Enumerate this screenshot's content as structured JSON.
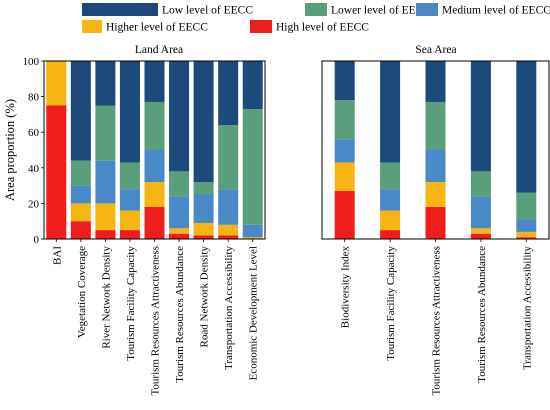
{
  "legend": [
    {
      "key": "low",
      "label": "Low level of EECC",
      "color": "#1b4a7b"
    },
    {
      "key": "lower",
      "label": "Lower level of EECC",
      "color": "#5b9e7c"
    },
    {
      "key": "medium",
      "label": "Medium level of EECC",
      "color": "#4a89c8"
    },
    {
      "key": "higher",
      "label": "Higher level of EECC",
      "color": "#f7b514"
    },
    {
      "key": "high",
      "label": "High level of EECC",
      "color": "#f01d1d"
    }
  ],
  "chart_data": [
    {
      "type": "bar",
      "stacked": true,
      "title": "Land Area",
      "ylabel": "Area proportion (%)",
      "ylim": [
        0,
        100
      ],
      "yticks": [
        0,
        20,
        40,
        60,
        80,
        100
      ],
      "grid": false,
      "categories": [
        "BAI",
        "Vegetation Coverage",
        "River Network Density",
        "Tourism Facility Capacity",
        "Tourism Resources Attractiveness",
        "Tourism Resources Abundance",
        "Road Network Density",
        "Transportation Accessibility",
        "Economic Development Level"
      ],
      "series": [
        {
          "name": "High level of EECC",
          "values": [
            75,
            10,
            5,
            5,
            18,
            3,
            2,
            2,
            0
          ]
        },
        {
          "name": "Higher level of EECC",
          "values": [
            25,
            10,
            15,
            11,
            14,
            3,
            7,
            6,
            1
          ]
        },
        {
          "name": "Medium level of EECC",
          "values": [
            0,
            10,
            24,
            12,
            18,
            18,
            16,
            20,
            7
          ]
        },
        {
          "name": "Lower level of EECC",
          "values": [
            0,
            14,
            31,
            15,
            27,
            14,
            7,
            36,
            65
          ]
        },
        {
          "name": "Low level of EECC",
          "values": [
            0,
            56,
            25,
            57,
            23,
            62,
            68,
            36,
            27
          ]
        }
      ]
    },
    {
      "type": "bar",
      "stacked": true,
      "title": "Sea Area",
      "ylim": [
        0,
        100
      ],
      "grid": false,
      "categories": [
        "Biodiversity Index",
        "Tourism Facility Capacity",
        "Tourism Resources Attractiveness",
        "Tourism Resources Abundance",
        "Transportation Accessibility"
      ],
      "series": [
        {
          "name": "High level of EECC",
          "values": [
            27,
            5,
            18,
            3,
            1
          ]
        },
        {
          "name": "Higher level of EECC",
          "values": [
            16,
            11,
            14,
            3,
            3
          ]
        },
        {
          "name": "Medium level of EECC",
          "values": [
            13,
            12,
            18,
            18,
            7
          ]
        },
        {
          "name": "Lower level of EECC",
          "values": [
            22,
            15,
            27,
            14,
            15
          ]
        },
        {
          "name": "Low level of EECC",
          "values": [
            22,
            57,
            23,
            62,
            74
          ]
        }
      ]
    }
  ]
}
